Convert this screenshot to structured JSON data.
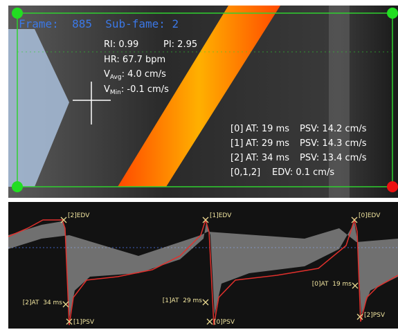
{
  "header": {
    "frame": "Frame:  885  Sub-fame: 2"
  },
  "indices": {
    "ri": "RI: 0.99",
    "pi": "PI: 2.95",
    "hr": "HR: 67.7 bpm",
    "vavg": {
      "symbol": "V",
      "sub": "Avg",
      "value": ": 4.0 cm/s"
    },
    "vmin": {
      "symbol": "V",
      "sub": "Min",
      "value": ": -0.1 cm/s"
    }
  },
  "measurements": [
    [
      "[0]",
      "AT: 19 ms",
      "PSV: 14.2 cm/s"
    ],
    [
      "[1]",
      "AT: 29 ms",
      "PSV: 14.3 cm/s"
    ],
    [
      "[2]",
      "AT: 34 ms",
      "PSV: 13.4 cm/s"
    ]
  ],
  "edv": [
    "[0,1,2]",
    "EDV: 0.1 cm/s"
  ],
  "markers": [
    "[2]EDV",
    "[2]AT  34 ms",
    "[1]PSV",
    "[1]EDV",
    "[1]AT  29 ms",
    "[0]PSV",
    "[0]EDV",
    "[0]AT  19 ms",
    "[2]PSV"
  ]
}
